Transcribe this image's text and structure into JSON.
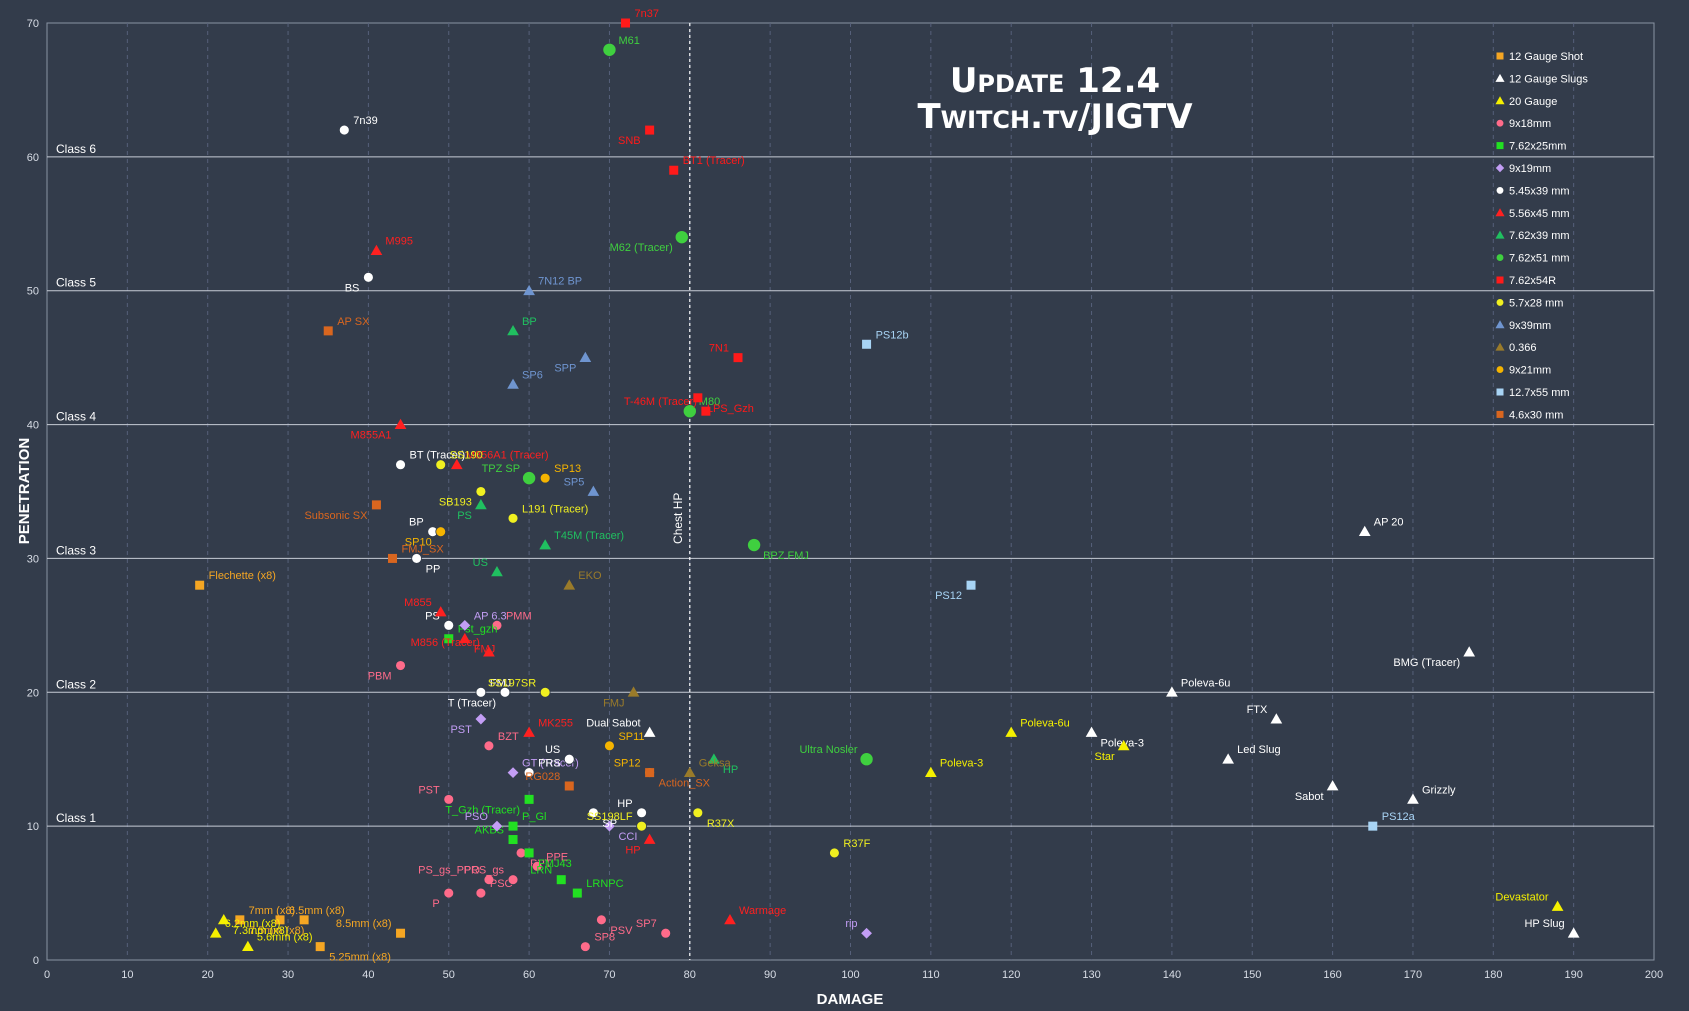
{
  "chart_data": {
    "type": "scatter",
    "title": "",
    "xlabel": "DAMAGE",
    "ylabel": "PENETRATION",
    "xlim": [
      0,
      200
    ],
    "ylim": [
      0,
      70
    ],
    "xticks": [
      0,
      10,
      20,
      30,
      40,
      50,
      60,
      70,
      80,
      90,
      100,
      110,
      120,
      130,
      140,
      150,
      160,
      170,
      180,
      190,
      200
    ],
    "yticks": [
      0,
      10,
      20,
      30,
      40,
      50,
      60,
      70
    ],
    "grid": true,
    "legend": "top-right",
    "watermark": {
      "line1": "Update 12.4",
      "line2": "Twitch.tv/JIGTV"
    },
    "reference_line": {
      "x": 80,
      "label": "Chest HP"
    },
    "class_lines": [
      {
        "y": 10,
        "label": "Class 1"
      },
      {
        "y": 20,
        "label": "Class 2"
      },
      {
        "y": 30,
        "label": "Class 3"
      },
      {
        "y": 40,
        "label": "Class 4"
      },
      {
        "y": 50,
        "label": "Class 5"
      },
      {
        "y": 60,
        "label": "Class 6"
      }
    ],
    "series": [
      {
        "name": "12 Gauge Shot",
        "marker": "square",
        "color": "#f5a623",
        "points": [
          {
            "label": "Flechette (x8)",
            "x": 19,
            "y": 28
          },
          {
            "label": "7.5mm (x8)",
            "x": 24,
            "y": 3
          },
          {
            "label": "6.5mm (x8)",
            "x": 29,
            "y": 3
          },
          {
            "label": "7mm (x8)",
            "x": 32,
            "y": 3
          },
          {
            "label": "5.25mm (x8)",
            "x": 34,
            "y": 1
          },
          {
            "label": "8.5mm (x8)",
            "x": 44,
            "y": 2
          }
        ]
      },
      {
        "name": "12 Gauge Slugs",
        "marker": "triangle",
        "color": "#ffffff",
        "points": [
          {
            "label": "AP 20",
            "x": 164,
            "y": 32
          },
          {
            "label": "BMG (Tracer)",
            "x": 177,
            "y": 23
          },
          {
            "label": "Poleva-6u",
            "x": 140,
            "y": 20
          },
          {
            "label": "FTX",
            "x": 153,
            "y": 18
          },
          {
            "label": "Poleva-3",
            "x": 130,
            "y": 17
          },
          {
            "label": "Dual Sabot",
            "x": 75,
            "y": 17
          },
          {
            "label": "Led Slug",
            "x": 147,
            "y": 15
          },
          {
            "label": "Sabot",
            "x": 160,
            "y": 13
          },
          {
            "label": "Grizzly",
            "x": 170,
            "y": 12
          },
          {
            "label": "HP Slug",
            "x": 190,
            "y": 2
          }
        ]
      },
      {
        "name": "20 Gauge",
        "marker": "triangle",
        "color": "#f5f000",
        "points": [
          {
            "label": "Poleva-6u",
            "x": 120,
            "y": 17
          },
          {
            "label": "Star",
            "x": 134,
            "y": 16
          },
          {
            "label": "Poleva-3",
            "x": 110,
            "y": 14
          },
          {
            "label": "Devastator",
            "x": 188,
            "y": 4
          },
          {
            "label": "7.3mm (x8)",
            "x": 22,
            "y": 3
          },
          {
            "label": "6.2mm (x8)",
            "x": 21,
            "y": 2
          },
          {
            "label": "5.6mm (x8)",
            "x": 25,
            "y": 1
          }
        ]
      },
      {
        "name": "9x18mm",
        "marker": "circle",
        "color": "#ff6b8a",
        "points": [
          {
            "label": "PMM",
            "x": 56,
            "y": 25
          },
          {
            "label": "PBM",
            "x": 44,
            "y": 22
          },
          {
            "label": "BZT",
            "x": 55,
            "y": 16
          },
          {
            "label": "PST",
            "x": 50,
            "y": 12
          },
          {
            "label": "PPT",
            "x": 59,
            "y": 8
          },
          {
            "label": "PS_gs_PPO",
            "x": 55,
            "y": 6
          },
          {
            "label": "PPE",
            "x": 61,
            "y": 7
          },
          {
            "label": "P",
            "x": 50,
            "y": 5
          },
          {
            "label": "PSO",
            "x": 54,
            "y": 5
          },
          {
            "label": "PRS_gs",
            "x": 58,
            "y": 6
          },
          {
            "label": "PSV",
            "x": 69,
            "y": 3
          },
          {
            "label": "SP7",
            "x": 77,
            "y": 2
          },
          {
            "label": "SP8",
            "x": 67,
            "y": 1
          }
        ]
      },
      {
        "name": "7.62x25mm",
        "marker": "square",
        "color": "#22e022",
        "points": [
          {
            "label": "Pst_gzh",
            "x": 50,
            "y": 24
          },
          {
            "label": "T_Gzh (Tracer)",
            "x": 60,
            "y": 12
          },
          {
            "label": "P_Gl",
            "x": 58,
            "y": 10
          },
          {
            "label": "AKBS",
            "x": 58,
            "y": 9
          },
          {
            "label": "FMJ43",
            "x": 60,
            "y": 8
          },
          {
            "label": "LRN",
            "x": 64,
            "y": 6
          },
          {
            "label": "LRNPC",
            "x": 66,
            "y": 5
          }
        ]
      },
      {
        "name": "9x19mm",
        "marker": "diamond",
        "color": "#c39ef5",
        "points": [
          {
            "label": "AP 6.3",
            "x": 52,
            "y": 25
          },
          {
            "label": "PST",
            "x": 54,
            "y": 18
          },
          {
            "label": "GT (Tracer)",
            "x": 58,
            "y": 14
          },
          {
            "label": "PSO",
            "x": 56,
            "y": 10
          },
          {
            "label": "CCI",
            "x": 70,
            "y": 10
          },
          {
            "label": "rip",
            "x": 102,
            "y": 2
          }
        ]
      },
      {
        "name": "5.45x39 mm",
        "marker": "circle",
        "color": "#ffffff",
        "points": [
          {
            "label": "7n39",
            "x": 37,
            "y": 62
          },
          {
            "label": "BS",
            "x": 40,
            "y": 51
          },
          {
            "label": "BT (Tracer)",
            "x": 44,
            "y": 37
          },
          {
            "label": "BP",
            "x": 48,
            "y": 32
          },
          {
            "label": "PP",
            "x": 46,
            "y": 30
          },
          {
            "label": "PS",
            "x": 50,
            "y": 25
          },
          {
            "label": "FMJ",
            "x": 54,
            "y": 20
          },
          {
            "label": "T (Tracer)",
            "x": 57,
            "y": 20
          },
          {
            "label": "PRS",
            "x": 60,
            "y": 14
          },
          {
            "label": "US",
            "x": 65,
            "y": 15
          },
          {
            "label": "SP",
            "x": 68,
            "y": 11
          },
          {
            "label": "HP",
            "x": 74,
            "y": 11
          }
        ]
      },
      {
        "name": "5.56x45 mm",
        "marker": "triangle",
        "color": "#ff2020",
        "points": [
          {
            "label": "M995",
            "x": 41,
            "y": 53
          },
          {
            "label": "M855A1",
            "x": 44,
            "y": 40
          },
          {
            "label": "M856A1 (Tracer)",
            "x": 51,
            "y": 37
          },
          {
            "label": "M855",
            "x": 49,
            "y": 26
          },
          {
            "label": "FMJ",
            "x": 52,
            "y": 24
          },
          {
            "label": "M856 (Tracer)",
            "x": 55,
            "y": 23
          },
          {
            "label": "MK255",
            "x": 60,
            "y": 17
          },
          {
            "label": "HP",
            "x": 75,
            "y": 9
          },
          {
            "label": "Warmage",
            "x": 85,
            "y": 3
          }
        ]
      },
      {
        "name": "7.62x39 mm",
        "marker": "triangle",
        "color": "#20c060",
        "points": [
          {
            "label": "BP",
            "x": 58,
            "y": 47
          },
          {
            "label": "PS",
            "x": 54,
            "y": 34
          },
          {
            "label": "T45M (Tracer)",
            "x": 62,
            "y": 31
          },
          {
            "label": "US",
            "x": 56,
            "y": 29
          },
          {
            "label": "HP",
            "x": 83,
            "y": 15
          }
        ]
      },
      {
        "name": "7.62x51 mm",
        "marker": "circle",
        "color": "#3fd03f",
        "points": [
          {
            "label": "M61",
            "x": 70,
            "y": 68
          },
          {
            "label": "M62 (Tracer)",
            "x": 79,
            "y": 54
          },
          {
            "label": "M80",
            "x": 80,
            "y": 41
          },
          {
            "label": "TPZ SP",
            "x": 60,
            "y": 36
          },
          {
            "label": "BPZ FMJ",
            "x": 88,
            "y": 31
          },
          {
            "label": "Ultra Nosler",
            "x": 102,
            "y": 15
          }
        ]
      },
      {
        "name": "7.62x54R",
        "marker": "square",
        "color": "#ff1a1a",
        "points": [
          {
            "label": "7n37",
            "x": 72,
            "y": 70
          },
          {
            "label": "SNB",
            "x": 75,
            "y": 62
          },
          {
            "label": "BT1 (Tracer)",
            "x": 78,
            "y": 59
          },
          {
            "label": "7N1",
            "x": 86,
            "y": 45
          },
          {
            "label": "LPS_Gzh",
            "x": 81,
            "y": 42
          },
          {
            "label": "T-46M (Tracer)",
            "x": 82,
            "y": 41
          }
        ]
      },
      {
        "name": "5.7x28 mm",
        "marker": "circle",
        "color": "#f0f020",
        "points": [
          {
            "label": "SS190",
            "x": 49,
            "y": 37
          },
          {
            "label": "SB193",
            "x": 54,
            "y": 35
          },
          {
            "label": "L191 (Tracer)",
            "x": 58,
            "y": 33
          },
          {
            "label": "SS197SR",
            "x": 62,
            "y": 20
          },
          {
            "label": "R37X",
            "x": 81,
            "y": 11
          },
          {
            "label": "SS198LF",
            "x": 74,
            "y": 10
          },
          {
            "label": "R37F",
            "x": 98,
            "y": 8
          }
        ]
      },
      {
        "name": "9x39mm",
        "marker": "triangle",
        "color": "#6f95d0",
        "points": [
          {
            "label": "7N12 BP",
            "x": 60,
            "y": 50
          },
          {
            "label": "SPP",
            "x": 67,
            "y": 45
          },
          {
            "label": "SP6",
            "x": 58,
            "y": 43
          },
          {
            "label": "SP5",
            "x": 68,
            "y": 35
          }
        ]
      },
      {
        "name": "0.366",
        "marker": "triangle",
        "color": "#9a7b2a",
        "points": [
          {
            "label": "EKO",
            "x": 65,
            "y": 28
          },
          {
            "label": "FMJ",
            "x": 73,
            "y": 20
          },
          {
            "label": "Geksa",
            "x": 80,
            "y": 14
          }
        ]
      },
      {
        "name": "9x21mm",
        "marker": "circle",
        "color": "#f5b400",
        "points": [
          {
            "label": "SP13",
            "x": 62,
            "y": 36
          },
          {
            "label": "SP10",
            "x": 49,
            "y": 32
          },
          {
            "label": "SP11",
            "x": 70,
            "y": 16
          },
          {
            "label": "SP12",
            "x": 75,
            "y": 14
          }
        ]
      },
      {
        "name": "12.7x55 mm",
        "marker": "square",
        "color": "#a8d4f5",
        "points": [
          {
            "label": "PS12b",
            "x": 102,
            "y": 46
          },
          {
            "label": "PS12",
            "x": 115,
            "y": 28
          },
          {
            "label": "PS12a",
            "x": 165,
            "y": 10
          }
        ]
      },
      {
        "name": "4.6x30 mm",
        "marker": "square",
        "color": "#d9661f",
        "points": [
          {
            "label": "AP SX",
            "x": 35,
            "y": 47
          },
          {
            "label": "Subsonic SX",
            "x": 41,
            "y": 34
          },
          {
            "label": "FMJ_SX",
            "x": 43,
            "y": 30
          },
          {
            "label": "RG028",
            "x": 65,
            "y": 13
          },
          {
            "label": "Action_SX",
            "x": 75,
            "y": 14
          }
        ]
      }
    ]
  }
}
